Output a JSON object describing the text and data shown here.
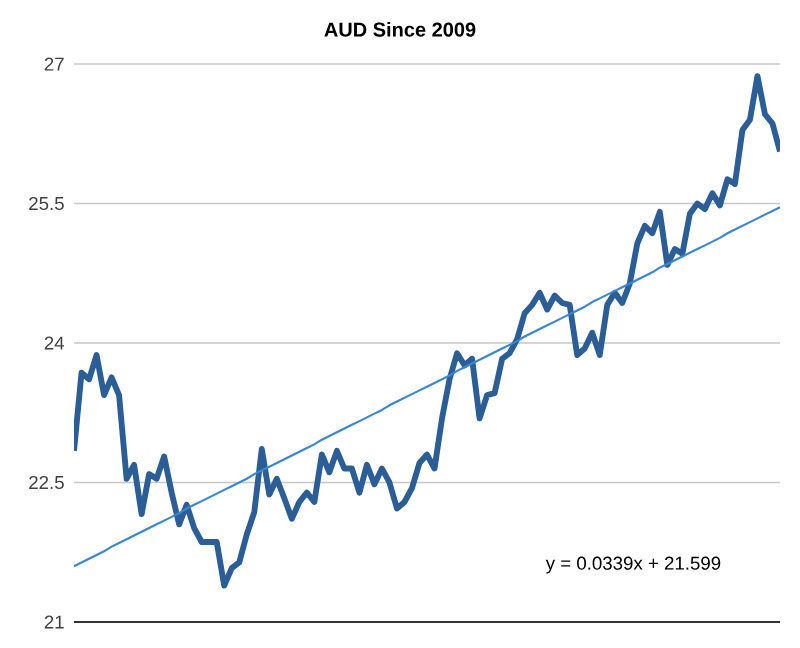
{
  "chart_data": {
    "type": "line",
    "title": "AUD Since 2009",
    "ylim": [
      21,
      27
    ],
    "yticks": [
      21,
      22.5,
      24,
      25.5,
      27
    ],
    "grid": "y",
    "tick_labels": "y",
    "annotations": [
      "y = 0.0339x + 21.599"
    ],
    "categories": [
      null,
      null,
      null,
      null,
      null,
      null,
      null,
      null,
      null,
      null,
      null,
      null,
      null,
      null,
      null,
      null,
      null,
      null,
      null,
      null,
      null,
      null,
      null,
      null,
      null,
      null,
      null,
      null,
      null,
      null,
      null,
      null,
      null,
      null,
      null,
      null,
      null,
      null,
      null,
      null,
      null,
      null,
      null,
      null,
      null,
      null,
      null,
      null,
      null,
      null,
      null,
      null,
      null,
      null,
      null,
      null,
      null,
      null,
      null,
      null,
      null,
      null,
      null,
      null,
      null,
      null,
      null,
      null,
      null,
      null,
      null,
      null,
      null,
      null,
      null,
      null,
      null,
      null,
      null,
      null,
      null,
      null,
      null,
      null,
      null,
      null,
      null,
      null,
      null,
      null,
      null,
      null,
      null,
      null,
      null
    ],
    "series": [
      {
        "color": "#2b5e97",
        "values": [
          22.84,
          23.68,
          23.61,
          23.87,
          23.44,
          23.63,
          23.44,
          22.54,
          22.69,
          22.16,
          22.59,
          22.54,
          22.78,
          22.39,
          22.05,
          22.26,
          22.01,
          21.86,
          21.86,
          21.86,
          21.39,
          21.58,
          21.64,
          21.94,
          22.18,
          22.86,
          22.37,
          22.54,
          22.33,
          22.11,
          22.29,
          22.39,
          22.29,
          22.8,
          22.61,
          22.84,
          22.65,
          22.65,
          22.39,
          22.69,
          22.48,
          22.65,
          22.5,
          22.22,
          22.29,
          22.44,
          22.71,
          22.8,
          22.65,
          23.19,
          23.61,
          23.89,
          23.76,
          23.83,
          23.19,
          23.44,
          23.46,
          23.83,
          23.89,
          24.04,
          24.32,
          24.41,
          24.54,
          24.36,
          24.51,
          24.43,
          24.41,
          23.87,
          23.94,
          24.11,
          23.87,
          24.41,
          24.54,
          24.43,
          24.64,
          25.07,
          25.26,
          25.18,
          25.41,
          24.84,
          25.01,
          24.96,
          25.39,
          25.5,
          25.44,
          25.61,
          25.48,
          25.76,
          25.71,
          26.29,
          26.4,
          26.87,
          26.46,
          26.36,
          26.06
        ]
      },
      {
        "color": "#3a86d0",
        "values": [
          21.6,
          21.64,
          21.68,
          21.72,
          21.76,
          21.81,
          21.85,
          21.89,
          21.93,
          21.97,
          22.01,
          22.05,
          22.09,
          22.13,
          22.17,
          22.22,
          22.26,
          22.3,
          22.34,
          22.38,
          22.42,
          22.46,
          22.5,
          22.54,
          22.59,
          22.63,
          22.67,
          22.71,
          22.75,
          22.79,
          22.83,
          22.87,
          22.91,
          22.96,
          23.0,
          23.04,
          23.08,
          23.12,
          23.16,
          23.2,
          23.24,
          23.28,
          23.33,
          23.37,
          23.41,
          23.45,
          23.49,
          23.53,
          23.57,
          23.61,
          23.65,
          23.7,
          23.74,
          23.78,
          23.82,
          23.86,
          23.9,
          23.94,
          23.98,
          24.02,
          24.07,
          24.11,
          24.15,
          24.19,
          24.23,
          24.27,
          24.31,
          24.35,
          24.39,
          24.44,
          24.48,
          24.52,
          24.56,
          24.6,
          24.64,
          24.68,
          24.72,
          24.76,
          24.81,
          24.85,
          24.89,
          24.93,
          24.97,
          25.01,
          25.05,
          25.09,
          25.13,
          25.18,
          25.22,
          25.26,
          25.3,
          25.34,
          25.38,
          25.42,
          25.46
        ]
      }
    ]
  }
}
